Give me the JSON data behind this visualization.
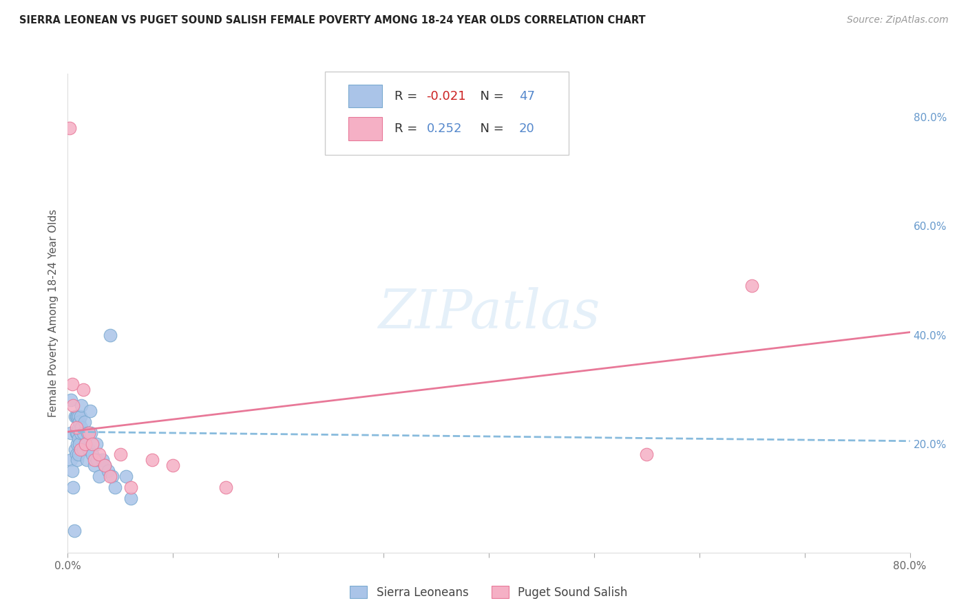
{
  "title": "SIERRA LEONEAN VS PUGET SOUND SALISH FEMALE POVERTY AMONG 18-24 YEAR OLDS CORRELATION CHART",
  "source": "Source: ZipAtlas.com",
  "ylabel": "Female Poverty Among 18-24 Year Olds",
  "xlim": [
    0.0,
    0.8
  ],
  "ylim": [
    0.0,
    0.88
  ],
  "group1_color": "#aac4e8",
  "group2_color": "#f5b0c5",
  "group1_edge_color": "#7aaad0",
  "group2_edge_color": "#e87898",
  "group1_line_color": "#88bbdd",
  "group2_line_color": "#e87898",
  "group1_label": "Sierra Leoneans",
  "group2_label": "Puget Sound Salish",
  "group1_R": -0.021,
  "group1_N": 47,
  "group2_R": 0.252,
  "group2_N": 20,
  "watermark": "ZIPatlas",
  "background_color": "#ffffff",
  "grid_color": "#cccccc",
  "sierra_x": [
    0.003,
    0.003,
    0.003,
    0.004,
    0.005,
    0.006,
    0.007,
    0.007,
    0.008,
    0.008,
    0.008,
    0.009,
    0.009,
    0.009,
    0.009,
    0.01,
    0.01,
    0.01,
    0.01,
    0.011,
    0.011,
    0.012,
    0.012,
    0.013,
    0.013,
    0.015,
    0.015,
    0.016,
    0.017,
    0.018,
    0.019,
    0.02,
    0.021,
    0.022,
    0.023,
    0.025,
    0.027,
    0.028,
    0.03,
    0.033,
    0.035,
    0.038,
    0.04,
    0.042,
    0.045,
    0.055,
    0.06
  ],
  "sierra_y": [
    0.28,
    0.22,
    0.17,
    0.15,
    0.12,
    0.04,
    0.25,
    0.19,
    0.25,
    0.22,
    0.18,
    0.25,
    0.22,
    0.2,
    0.17,
    0.25,
    0.23,
    0.21,
    0.18,
    0.24,
    0.2,
    0.25,
    0.22,
    0.27,
    0.23,
    0.22,
    0.19,
    0.24,
    0.2,
    0.17,
    0.22,
    0.19,
    0.26,
    0.22,
    0.18,
    0.16,
    0.2,
    0.17,
    0.14,
    0.17,
    0.16,
    0.15,
    0.4,
    0.14,
    0.12,
    0.14,
    0.1
  ],
  "puget_x": [
    0.002,
    0.004,
    0.005,
    0.008,
    0.012,
    0.015,
    0.017,
    0.02,
    0.023,
    0.025,
    0.03,
    0.035,
    0.04,
    0.05,
    0.06,
    0.08,
    0.1,
    0.15,
    0.55,
    0.65
  ],
  "puget_y": [
    0.78,
    0.31,
    0.27,
    0.23,
    0.19,
    0.3,
    0.2,
    0.22,
    0.2,
    0.17,
    0.18,
    0.16,
    0.14,
    0.18,
    0.12,
    0.17,
    0.16,
    0.12,
    0.18,
    0.49
  ],
  "sierra_trend_x": [
    0.0,
    0.8
  ],
  "sierra_trend_y": [
    0.222,
    0.205
  ],
  "puget_trend_x": [
    0.0,
    0.8
  ],
  "puget_trend_y": [
    0.222,
    0.405
  ]
}
